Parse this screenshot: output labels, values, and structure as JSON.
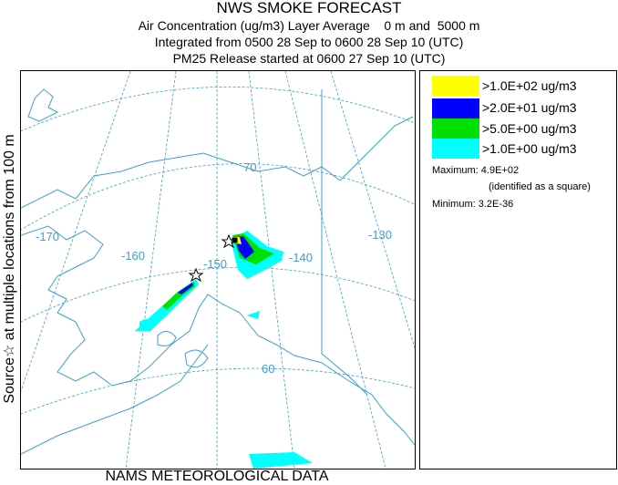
{
  "titles": [
    "NWS SMOKE FORECAST",
    "Air Concentration (ug/m3) Layer Average    0 m and  5000 m",
    "Integrated from 0500 28 Sep to 0600 28 Sep 10 (UTC)",
    "PM25 Release started at 0600 27 Sep 10 (UTC)"
  ],
  "left_label": "Source☆ at multiple locations  from  100 m",
  "bottom_label": "NAMS METEOROLOGICAL DATA",
  "legend": {
    "items": [
      {
        "label": ">1.0E+02 ug/m3",
        "color": "#ffff00"
      },
      {
        "label": ">2.0E+01 ug/m3",
        "color": "#0000ff"
      },
      {
        "label": ">5.0E+00 ug/m3",
        "color": "#00e000"
      },
      {
        "label": ">1.0E+00 ug/m3",
        "color": "#00ffff"
      }
    ],
    "maximum": "Maximum: 4.9E+02",
    "maximum_note": "(identified as a square)",
    "minimum": "Minimum: 3.2E-36"
  },
  "map": {
    "longitude_labels": [
      "-170",
      "-160",
      "-150",
      "-140",
      "-130"
    ],
    "latitude_labels": [
      "70",
      "60"
    ],
    "coast_color": "#3ca0d0",
    "graticule_color": "#3ca0d0"
  }
}
